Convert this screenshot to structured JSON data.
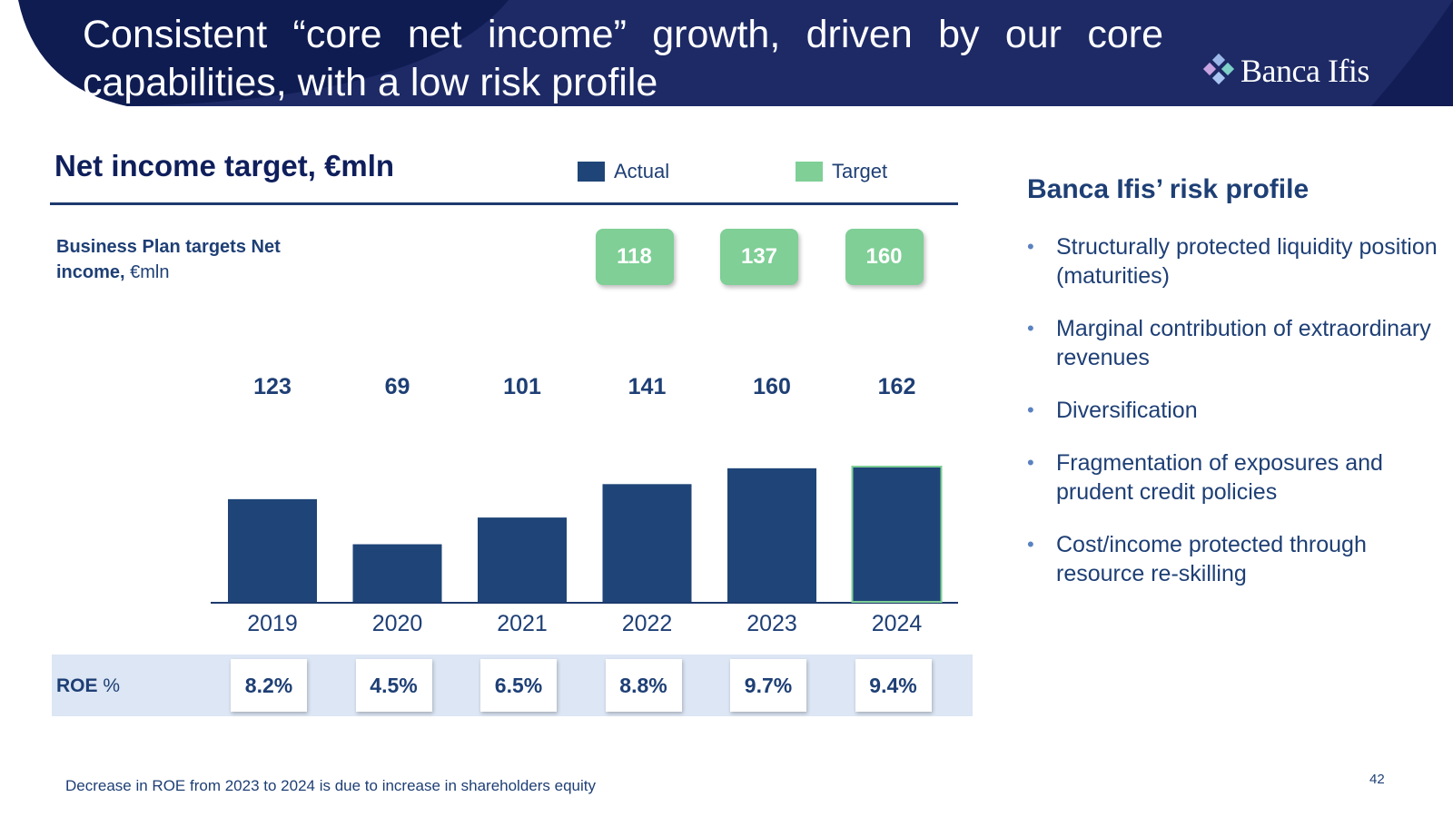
{
  "header": {
    "title": "Consistent “core net income” growth, driven by our core capabilities, with a low risk profile",
    "logo_text": "Banca Ifis"
  },
  "chart_section": {
    "title": "Net income target, €mln",
    "bp_label_bold": "Business Plan targets Net income,",
    "bp_label_unit": " €mln",
    "roe_label_bold": "ROE",
    "roe_label_unit": " %"
  },
  "chart_data": {
    "type": "bar",
    "categories": [
      "2019",
      "2020",
      "2021",
      "2022",
      "2023",
      "2024"
    ],
    "series": [
      {
        "name": "Actual",
        "values": [
          123,
          69,
          101,
          141,
          160,
          162
        ],
        "color": "#1f4578"
      },
      {
        "name": "Target",
        "values": [
          null,
          null,
          null,
          118,
          137,
          160
        ],
        "color": "#7fcf96"
      }
    ],
    "roe": [
      "8.2%",
      "4.5%",
      "6.5%",
      "8.8%",
      "9.7%",
      "9.4%"
    ],
    "ylim": [
      0,
      170
    ],
    "legend_position": "top"
  },
  "right_panel": {
    "title": "Banca Ifis’ risk profile",
    "items": [
      "Structurally protected liquidity position (maturities)",
      "Marginal contribution of extraordinary revenues",
      "Diversification",
      "Fragmentation of exposures and prudent credit policies",
      "Cost/income protected through resource re-skilling"
    ]
  },
  "footer": {
    "note": "Decrease in ROE from 2023 to 2024 is due to increase in shareholders equity",
    "page": "42"
  },
  "colors": {
    "header_bg": "#1d2a66",
    "header_arc": "#0f1c52",
    "navy_text": "#1e3f75",
    "bar": "#1f4578",
    "target": "#7fcf96",
    "roe_band": "#dce6f4"
  }
}
